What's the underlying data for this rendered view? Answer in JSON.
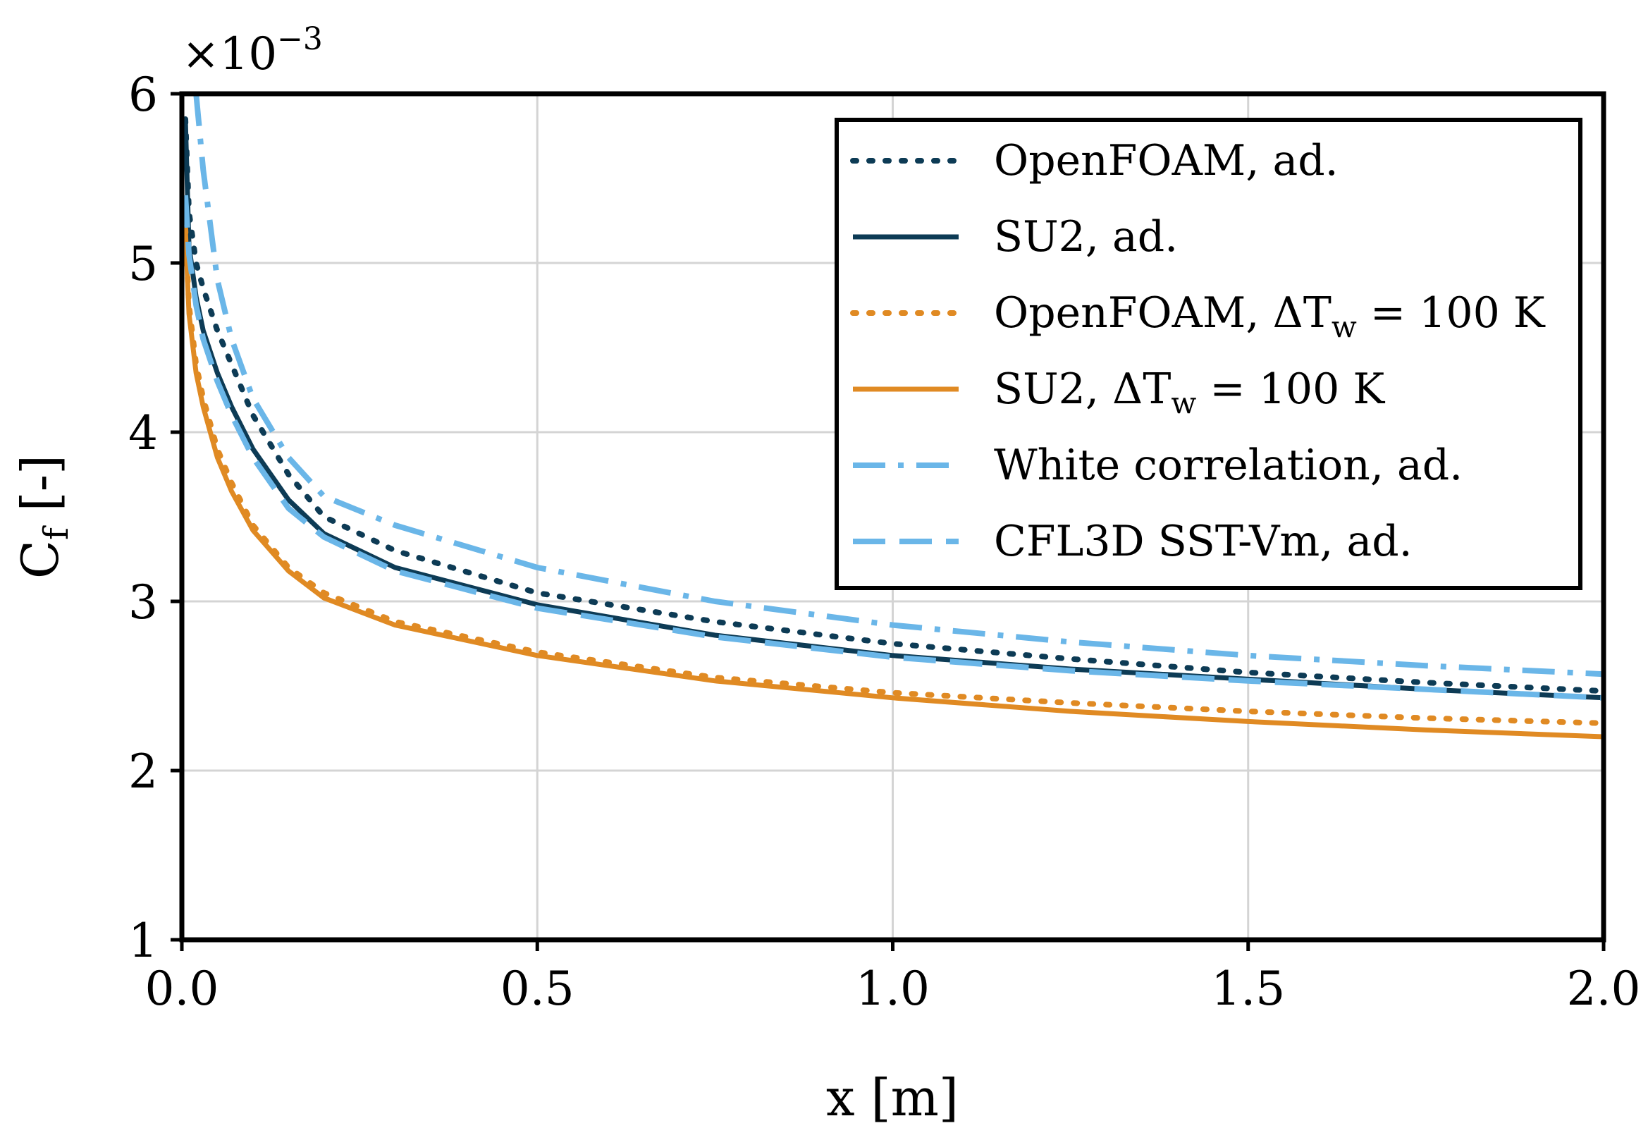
{
  "chart_data": {
    "type": "line",
    "title": "",
    "xlabel": "x [m]",
    "ylabel_main": "C",
    "ylabel_sub": "f",
    "ylabel_suffix": " [-]",
    "y_multiplier_base": "×10",
    "y_multiplier_exp": "−3",
    "xlim": [
      0.0,
      2.0
    ],
    "ylim": [
      1,
      6
    ],
    "x_ticks": [
      0.0,
      0.5,
      1.0,
      1.5,
      2.0
    ],
    "x_tick_labels": [
      "0.0",
      "0.5",
      "1.0",
      "1.5",
      "2.0"
    ],
    "y_ticks": [
      1,
      2,
      3,
      4,
      5,
      6
    ],
    "y_tick_labels": [
      "1",
      "2",
      "3",
      "4",
      "5",
      "6"
    ],
    "grid": true,
    "legend_position": "top-right",
    "series": [
      {
        "name": "OpenFOAM, ad.",
        "label_main": "OpenFOAM, ad.",
        "label_delta": "",
        "label_sub": "",
        "label_rest": "",
        "color": "#0d3b55",
        "style": "dotted",
        "x": [
          0.005,
          0.01,
          0.02,
          0.03,
          0.05,
          0.07,
          0.1,
          0.15,
          0.2,
          0.3,
          0.5,
          0.75,
          1.0,
          1.25,
          1.5,
          1.75,
          2.0
        ],
        "y": [
          5.85,
          5.3,
          5.0,
          4.85,
          4.6,
          4.4,
          4.1,
          3.75,
          3.5,
          3.3,
          3.05,
          2.88,
          2.75,
          2.66,
          2.58,
          2.52,
          2.47
        ]
      },
      {
        "name": "SU2, ad.",
        "label_main": "SU2, ad.",
        "label_delta": "",
        "label_sub": "",
        "label_rest": "",
        "color": "#0d3b55",
        "style": "solid",
        "x": [
          0.005,
          0.01,
          0.02,
          0.03,
          0.05,
          0.07,
          0.1,
          0.15,
          0.2,
          0.3,
          0.5,
          0.75,
          1.0,
          1.25,
          1.5,
          1.75,
          2.0
        ],
        "y": [
          5.85,
          5.1,
          4.8,
          4.6,
          4.35,
          4.15,
          3.9,
          3.6,
          3.4,
          3.2,
          2.98,
          2.8,
          2.68,
          2.6,
          2.54,
          2.48,
          2.43
        ]
      },
      {
        "name": "OpenFOAM, ΔTw = 100 K",
        "label_main": "OpenFOAM, ",
        "label_delta": "ΔT",
        "label_sub": "w",
        "label_rest": " = 100 K",
        "color": "#e08a23",
        "style": "dotted",
        "x": [
          0.005,
          0.01,
          0.02,
          0.03,
          0.05,
          0.07,
          0.1,
          0.15,
          0.2,
          0.3,
          0.5,
          0.75,
          1.0,
          1.25,
          1.5,
          1.75,
          2.0
        ],
        "y": [
          5.2,
          4.75,
          4.4,
          4.2,
          3.9,
          3.7,
          3.45,
          3.2,
          3.05,
          2.88,
          2.7,
          2.55,
          2.46,
          2.4,
          2.35,
          2.31,
          2.28
        ]
      },
      {
        "name": "SU2, ΔTw = 100 K",
        "label_main": "SU2, ",
        "label_delta": "ΔT",
        "label_sub": "w",
        "label_rest": " = 100 K",
        "color": "#e08a23",
        "style": "solid",
        "x": [
          0.005,
          0.01,
          0.02,
          0.03,
          0.05,
          0.07,
          0.1,
          0.15,
          0.2,
          0.3,
          0.5,
          0.75,
          1.0,
          1.25,
          1.5,
          1.75,
          2.0
        ],
        "y": [
          5.2,
          4.7,
          4.35,
          4.15,
          3.85,
          3.65,
          3.42,
          3.18,
          3.02,
          2.86,
          2.68,
          2.53,
          2.43,
          2.35,
          2.29,
          2.24,
          2.2
        ]
      },
      {
        "name": "White correlation, ad.",
        "label_main": "White correlation, ad.",
        "label_delta": "",
        "label_sub": "",
        "label_rest": "",
        "color": "#6ab6e8",
        "style": "dashdot",
        "x": [
          0.02,
          0.03,
          0.05,
          0.07,
          0.1,
          0.15,
          0.2,
          0.3,
          0.5,
          0.75,
          1.0,
          1.25,
          1.5,
          1.75,
          2.0
        ],
        "y": [
          6.0,
          5.55,
          4.9,
          4.55,
          4.2,
          3.85,
          3.62,
          3.45,
          3.2,
          3.0,
          2.86,
          2.76,
          2.68,
          2.62,
          2.57
        ]
      },
      {
        "name": "CFL3D SST-Vm, ad.",
        "label_main": "CFL3D SST-Vm, ad.",
        "label_delta": "",
        "label_sub": "",
        "label_rest": "",
        "color": "#6ab6e8",
        "style": "dashed",
        "x": [
          0.005,
          0.01,
          0.02,
          0.03,
          0.05,
          0.07,
          0.1,
          0.15,
          0.2,
          0.3,
          0.5,
          0.75,
          1.0,
          1.25,
          1.5,
          1.75,
          2.0
        ],
        "y": [
          5.4,
          5.05,
          4.75,
          4.55,
          4.3,
          4.1,
          3.85,
          3.55,
          3.38,
          3.18,
          2.96,
          2.79,
          2.67,
          2.59,
          2.53,
          2.48,
          2.43
        ]
      }
    ]
  }
}
